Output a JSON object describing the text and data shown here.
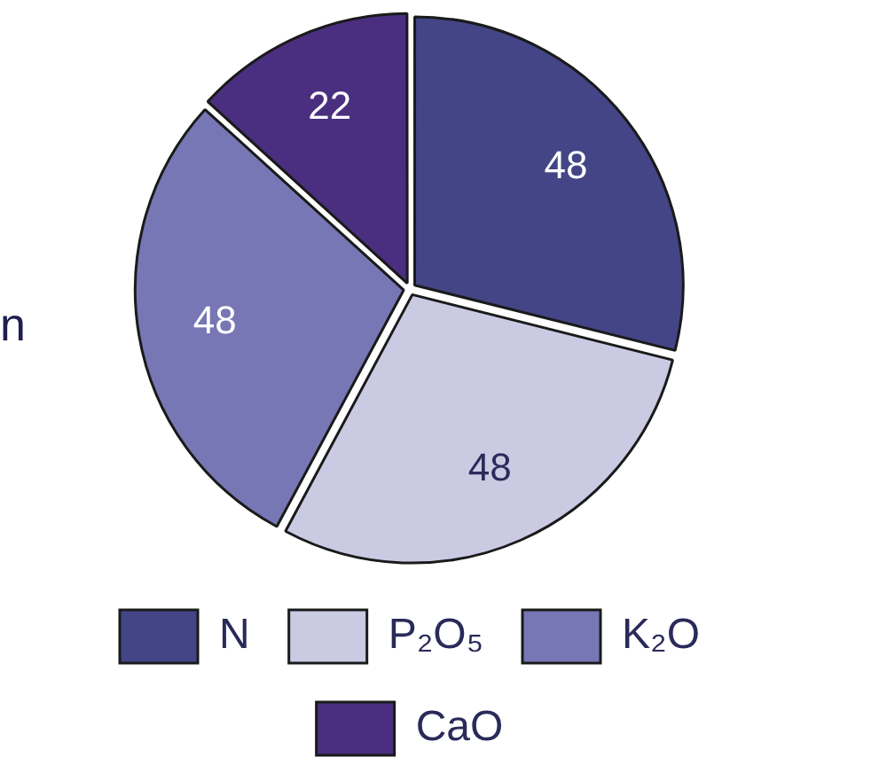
{
  "chart_data": {
    "type": "pie",
    "categories": [
      "N",
      "P₂O₅",
      "K₂O",
      "CaO"
    ],
    "values": [
      48,
      48,
      48,
      22
    ],
    "colors": [
      "#434587",
      "#cbcae3",
      "#7777b5",
      "#4a2f80"
    ],
    "data_labels": true,
    "legend": "bottom",
    "annotations": [
      "n"
    ]
  }
}
